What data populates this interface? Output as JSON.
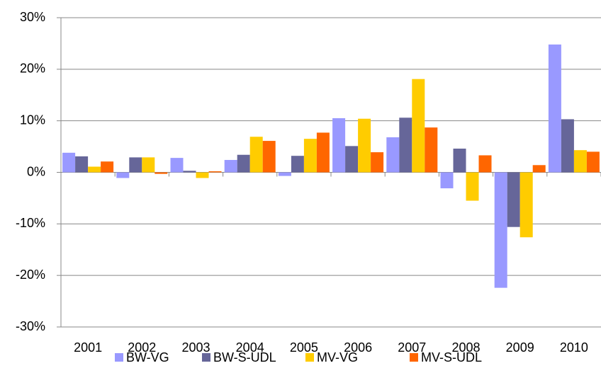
{
  "chart_data": {
    "type": "bar",
    "categories": [
      "2001",
      "2002",
      "2003",
      "2004",
      "2005",
      "2006",
      "2007",
      "2008",
      "2009",
      "2010"
    ],
    "series": [
      {
        "name": "BW-VG",
        "color": "#9999ff",
        "values": [
          3.8,
          -1.1,
          2.8,
          2.4,
          -0.7,
          10.5,
          6.8,
          -3.1,
          -22.4,
          24.8
        ]
      },
      {
        "name": "BW-S-UDL",
        "color": "#666699",
        "values": [
          3.1,
          2.9,
          0.3,
          3.4,
          3.2,
          5.1,
          10.6,
          4.6,
          -10.6,
          10.3
        ]
      },
      {
        "name": "MV-VG",
        "color": "#ffcc00",
        "values": [
          1.1,
          2.9,
          -1.1,
          6.9,
          6.5,
          10.4,
          18.1,
          -5.5,
          -12.6,
          4.3
        ]
      },
      {
        "name": "MV-S-UDL",
        "color": "#ff6600",
        "values": [
          2.1,
          -0.3,
          0.2,
          6.1,
          7.7,
          3.9,
          8.7,
          3.3,
          1.4,
          4.0
        ]
      }
    ],
    "ylim": [
      -30,
      30
    ],
    "yticks": [
      {
        "value": -30,
        "label": "-30%"
      },
      {
        "value": -20,
        "label": "-20%"
      },
      {
        "value": -10,
        "label": "-10%"
      },
      {
        "value": 0,
        "label": "0%"
      },
      {
        "value": 10,
        "label": "10%"
      },
      {
        "value": 20,
        "label": "20%"
      },
      {
        "value": 30,
        "label": "30%"
      }
    ],
    "grid": true,
    "legend": "bottom"
  }
}
